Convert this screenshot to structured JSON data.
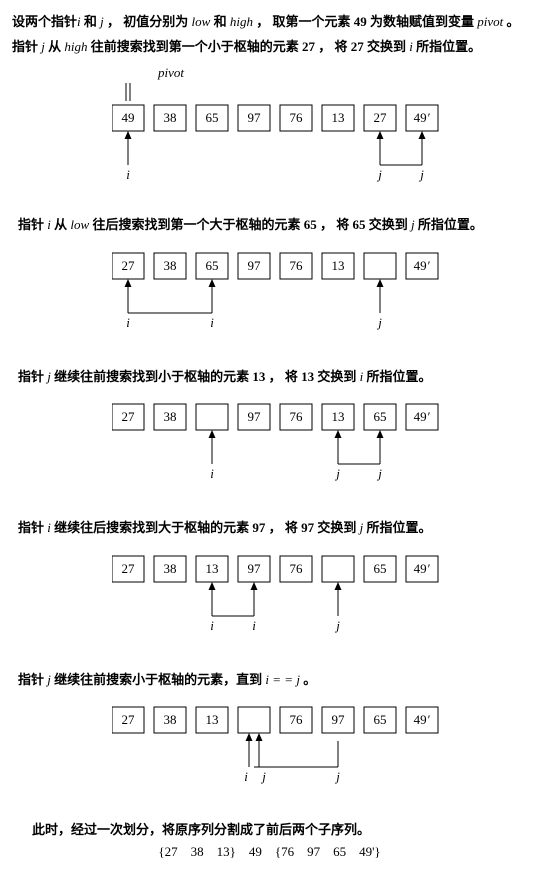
{
  "intro": {
    "line1_a": "设两个指针",
    "line1_b": " 和 ",
    "line1_c": " ， 初值分别为 ",
    "line1_d": " 和 ",
    "line1_e": " ， 取第一个元素 49 为数轴赋值到变量 ",
    "line1_f": " 。",
    "line2_a": "指针 ",
    "line2_b": " 从 ",
    "line2_c": " 往前搜索找到第一个小于枢轴的元素 27 ， 将 27 交换到 ",
    "line2_d": " 所指位置。",
    "i": "i",
    "j": "j",
    "low": "low",
    "high": "high",
    "pivot": "pivot"
  },
  "cell": {
    "w": 32,
    "h": 26,
    "gap": 10
  },
  "colors": {
    "stroke": "#000000",
    "bg": "#ffffff"
  },
  "step1": {
    "pivot_label": "pivot",
    "values": [
      "49",
      "38",
      "65",
      "97",
      "76",
      "13",
      "27",
      "49'"
    ],
    "pointers": [
      {
        "col": 0,
        "label": "i",
        "type": "up"
      },
      {
        "col": 6,
        "label": "j",
        "type": "up-move-from",
        "from": 7
      }
    ]
  },
  "step2": {
    "text_a": "指针 ",
    "text_b": " 从 ",
    "text_c": " 往后搜索找到第一个大于枢轴的元素 65 ， 将 65 交换到 ",
    "text_d": " 所指位置。",
    "i": "i",
    "low": "low",
    "j": "j",
    "values": [
      "27",
      "38",
      "65",
      "97",
      "76",
      "13",
      "",
      "49'"
    ],
    "pointers": [
      {
        "col": 0,
        "label": "i",
        "type": "L-from",
        "to": 2,
        "to_label": "i"
      },
      {
        "col": 6,
        "label": "j",
        "type": "up"
      }
    ]
  },
  "step3": {
    "text_a": "指针 ",
    "text_b": " 继续往前搜索找到小于枢轴的元素 13 ， 将 13 交换到 ",
    "text_c": " 所指位置。",
    "j": "j",
    "i": "i",
    "values": [
      "27",
      "38",
      "",
      "97",
      "76",
      "13",
      "65",
      "49'"
    ],
    "pointers": [
      {
        "col": 2,
        "label": "i",
        "type": "up"
      },
      {
        "col": 5,
        "label": "j",
        "type": "L-from",
        "from": 6,
        "to": 5
      }
    ]
  },
  "step4": {
    "text_a": "指针 ",
    "text_b": " 继续往后搜索找到大于枢轴的元素 97 ， 将 97 交换到 ",
    "text_c": " 所指位置。",
    "i": "i",
    "j": "j",
    "values": [
      "27",
      "38",
      "13",
      "97",
      "76",
      "",
      "65",
      "49'"
    ],
    "pointers": [
      {
        "col": 2,
        "label": "i",
        "type": "L-from",
        "to": 3,
        "to_label": "i"
      },
      {
        "col": 5,
        "label": "j",
        "type": "up"
      }
    ]
  },
  "step5": {
    "text_a": "指针 ",
    "text_b": " 继续往前搜索小于枢轴的元素，直到 ",
    "text_c": " 。",
    "j": "j",
    "cond": "i = = j",
    "values": [
      "27",
      "38",
      "13",
      "",
      "76",
      "97",
      "65",
      "49'"
    ],
    "pointers": [
      {
        "col": 3,
        "label": "i",
        "type": "up-pair",
        "label2": "j"
      },
      {
        "col": 5,
        "label": "j",
        "type": "L-to",
        "to": 3
      }
    ]
  },
  "result": {
    "text": "此时，经过一次划分，将原序列分割成了前后两个子序列。",
    "left": [
      "27",
      "38",
      "13"
    ],
    "mid": "49",
    "right": [
      "76",
      "97",
      "65",
      "49'"
    ]
  }
}
